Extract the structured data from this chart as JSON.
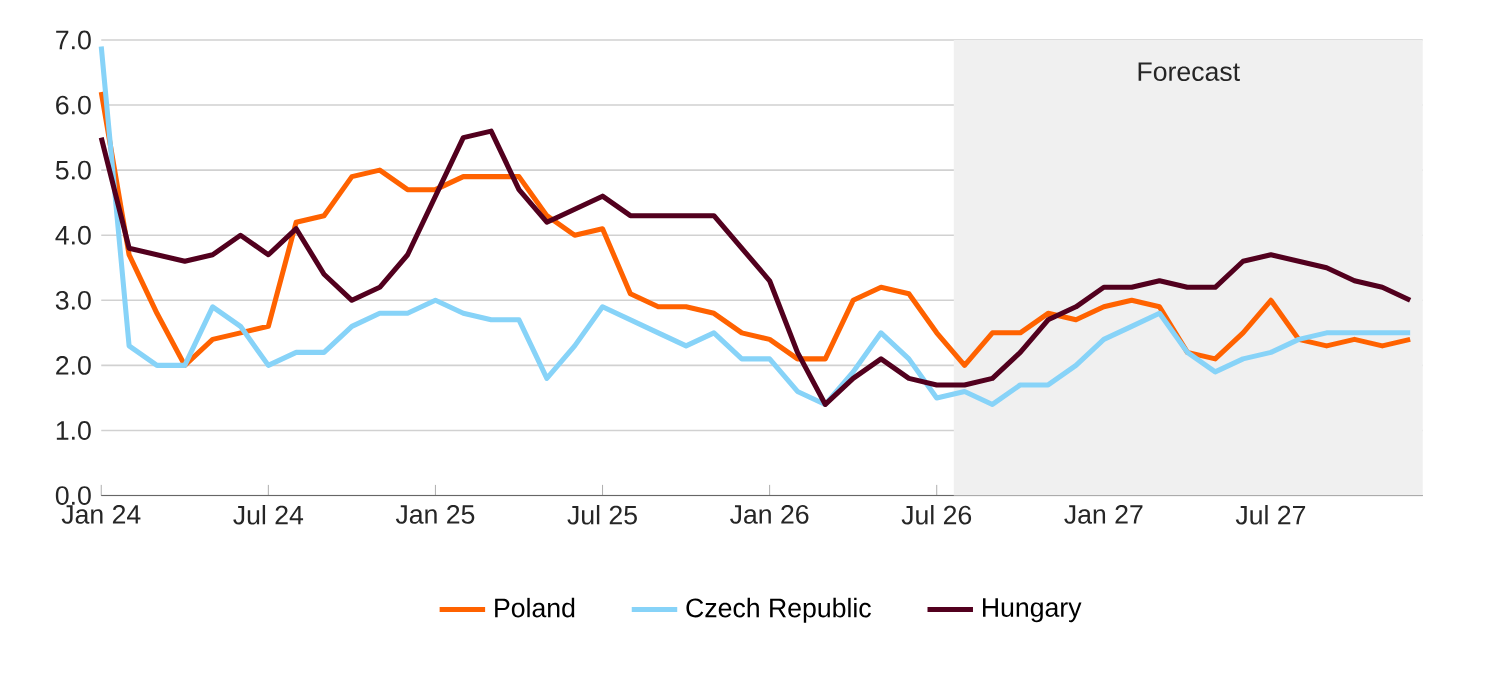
{
  "chart_data": {
    "type": "line",
    "x": [
      "2024-01",
      "2024-02",
      "2024-03",
      "2024-04",
      "2024-05",
      "2024-06",
      "2024-07",
      "2024-08",
      "2024-09",
      "2024-10",
      "2024-11",
      "2024-12",
      "2025-01",
      "2025-02",
      "2025-03",
      "2025-04",
      "2025-05",
      "2025-06",
      "2025-07",
      "2025-08",
      "2025-09",
      "2025-10",
      "2025-11",
      "2025-12",
      "2026-01",
      "2026-02",
      "2026-03",
      "2026-04",
      "2026-05",
      "2026-06",
      "2026-07",
      "2026-08",
      "2026-09",
      "2026-10",
      "2026-11",
      "2026-12",
      "2027-01",
      "2027-02",
      "2027-03",
      "2027-04",
      "2027-05",
      "2027-06",
      "2027-07",
      "2027-08",
      "2027-09",
      "2027-10",
      "2027-11",
      "2027-12"
    ],
    "series": [
      {
        "name": "Poland",
        "color": "#ff6200",
        "values": [
          6.2,
          3.7,
          2.8,
          2.0,
          2.4,
          2.5,
          2.6,
          4.2,
          4.3,
          4.9,
          5.0,
          4.7,
          4.7,
          4.9,
          4.9,
          4.9,
          4.3,
          4.0,
          4.1,
          3.1,
          2.9,
          2.9,
          2.8,
          2.5,
          2.4,
          2.1,
          2.1,
          3.0,
          3.2,
          3.1,
          2.5,
          2.0,
          2.5,
          2.5,
          2.8,
          2.7,
          2.9,
          3.0,
          2.9,
          2.2,
          2.1,
          2.5,
          3.0,
          2.4,
          2.3,
          2.4,
          2.3,
          2.4
        ]
      },
      {
        "name": "Czech Republic",
        "color": "#87d3f8",
        "values": [
          6.9,
          2.3,
          2.0,
          2.0,
          2.9,
          2.6,
          2.0,
          2.2,
          2.2,
          2.6,
          2.8,
          2.8,
          3.0,
          2.8,
          2.7,
          2.7,
          1.8,
          2.3,
          2.9,
          2.7,
          2.5,
          2.3,
          2.5,
          2.1,
          2.1,
          1.6,
          1.4,
          1.9,
          2.5,
          2.1,
          1.5,
          1.6,
          1.4,
          1.7,
          1.7,
          2.0,
          2.4,
          2.6,
          2.8,
          2.2,
          1.9,
          2.1,
          2.2,
          2.4,
          2.5,
          2.5,
          2.5,
          2.5
        ]
      },
      {
        "name": "Hungary",
        "color": "#52001e",
        "values": [
          5.5,
          3.8,
          3.7,
          3.6,
          3.7,
          4.0,
          3.7,
          4.1,
          3.4,
          3.0,
          3.2,
          3.7,
          4.6,
          5.5,
          5.6,
          4.7,
          4.2,
          4.4,
          4.6,
          4.3,
          4.3,
          4.3,
          4.3,
          3.8,
          3.3,
          2.2,
          1.4,
          1.8,
          2.1,
          1.8,
          1.7,
          1.7,
          1.8,
          2.2,
          2.7,
          2.9,
          3.2,
          3.2,
          3.3,
          3.2,
          3.2,
          3.6,
          3.7,
          3.6,
          3.5,
          3.3,
          3.2,
          3.0
        ]
      }
    ],
    "xlim": [
      "2024-01",
      "2027-12-15"
    ],
    "xticks": [
      {
        "value": "2024-01",
        "label": "Jan 24"
      },
      {
        "value": "2024-07",
        "label": "Jul 24"
      },
      {
        "value": "2025-01",
        "label": "Jan 25"
      },
      {
        "value": "2025-07",
        "label": "Jul 25"
      },
      {
        "value": "2026-01",
        "label": "Jan 26"
      },
      {
        "value": "2026-07",
        "label": "Jul 26"
      },
      {
        "value": "2027-01",
        "label": "Jan 27"
      },
      {
        "value": "2027-07",
        "label": "Jul 27"
      }
    ],
    "ylim": [
      0,
      7
    ],
    "yticks": [
      {
        "value": 0,
        "label": "0.0"
      },
      {
        "value": 1,
        "label": "1.0"
      },
      {
        "value": 2,
        "label": "2.0"
      },
      {
        "value": 3,
        "label": "3.0"
      },
      {
        "value": 4,
        "label": "4.0"
      },
      {
        "value": 5,
        "label": "5.0"
      },
      {
        "value": 6,
        "label": "6.0"
      },
      {
        "value": 7,
        "label": "7.0"
      }
    ],
    "bands": [
      {
        "axis": "x",
        "from": "2026-07-20",
        "to": "2027-12-15",
        "label": "Forecast",
        "color": "#f0f0f0"
      }
    ],
    "grid": "y",
    "legend": "bottom"
  }
}
